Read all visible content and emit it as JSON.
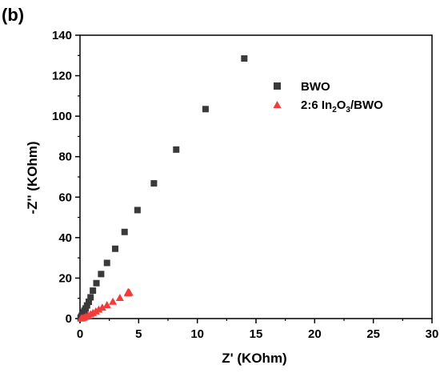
{
  "panel_label": "(b)",
  "chart_data": {
    "type": "scatter",
    "xlabel": "Z' (KOhm)",
    "ylabel": "-Z'' (KOhm)",
    "xlim": [
      0,
      30
    ],
    "ylim": [
      0,
      140
    ],
    "xticks": [
      0,
      5,
      10,
      15,
      20,
      25,
      30
    ],
    "yticks": [
      0,
      20,
      40,
      60,
      80,
      100,
      120,
      140
    ],
    "grid": false,
    "legend_position": "upper-right",
    "series": [
      {
        "name": "BWO",
        "marker": "square",
        "color": "#3a3a3a",
        "points": [
          [
            0.05,
            0.3
          ],
          [
            0.1,
            0.8
          ],
          [
            0.15,
            1.4
          ],
          [
            0.22,
            2.2
          ],
          [
            0.3,
            3.0
          ],
          [
            0.38,
            3.9
          ],
          [
            0.48,
            5.0
          ],
          [
            0.6,
            6.5
          ],
          [
            0.75,
            8.3
          ],
          [
            0.9,
            10.5
          ],
          [
            1.1,
            13.8
          ],
          [
            1.4,
            17.5
          ],
          [
            1.8,
            22.0
          ],
          [
            2.3,
            27.5
          ],
          [
            3.0,
            34.5
          ],
          [
            3.8,
            42.8
          ],
          [
            4.9,
            53.6
          ],
          [
            6.3,
            66.8
          ],
          [
            8.2,
            83.5
          ],
          [
            10.7,
            103.5
          ],
          [
            14.0,
            128.5
          ]
        ]
      },
      {
        "name": "2:6 In2O3/BWO",
        "marker": "triangle",
        "color": "#f03c3c",
        "points": [
          [
            0.1,
            0.1
          ],
          [
            0.2,
            0.3
          ],
          [
            0.35,
            0.6
          ],
          [
            0.5,
            1.0
          ],
          [
            0.7,
            1.5
          ],
          [
            0.9,
            2.2
          ],
          [
            1.1,
            2.8
          ],
          [
            1.35,
            3.6
          ],
          [
            1.6,
            4.5
          ],
          [
            1.9,
            5.5
          ],
          [
            2.3,
            6.7
          ],
          [
            2.8,
            8.4
          ],
          [
            3.4,
            10.3
          ],
          [
            4.1,
            12.5
          ],
          [
            4.1,
            12.9
          ],
          [
            4.2,
            12.9
          ],
          [
            4.1,
            12.9
          ],
          [
            4.1,
            12.9
          ],
          [
            4.1,
            12.9
          ],
          [
            4.1,
            12.9
          ],
          [
            4.1,
            12.9
          ],
          [
            4.1,
            12.9
          ],
          [
            4.15,
            12.9
          ],
          [
            4.1,
            12.9
          ],
          [
            4.1,
            12.9
          ],
          [
            4.1,
            12.9
          ],
          [
            4.1,
            12.9
          ],
          [
            4.1,
            12.9
          ],
          [
            4.1,
            12.9
          ],
          [
            4.1,
            12.9
          ],
          [
            4.1,
            12.9
          ],
          [
            4.2,
            12.8
          ],
          [
            4.1,
            13.0
          ],
          [
            4.1,
            12.9
          ],
          [
            4.1,
            12.9
          ],
          [
            4.1,
            12.9
          ],
          [
            4.1,
            12.9
          ],
          [
            4.1,
            12.9
          ],
          [
            4.1,
            12.9
          ],
          [
            4.1,
            12.9
          ],
          [
            4.1,
            12.9
          ],
          [
            4.1,
            12.9
          ],
          [
            4.1,
            12.9
          ],
          [
            4.1,
            12.9
          ]
        ]
      }
    ]
  },
  "legend": {
    "bwo_label": "BWO",
    "in2o3_prefix": "2:6 In",
    "in2o3_sub1": "2",
    "in2o3_mid": "O",
    "in2o3_sub2": "3",
    "in2o3_suffix": "/BWO"
  }
}
